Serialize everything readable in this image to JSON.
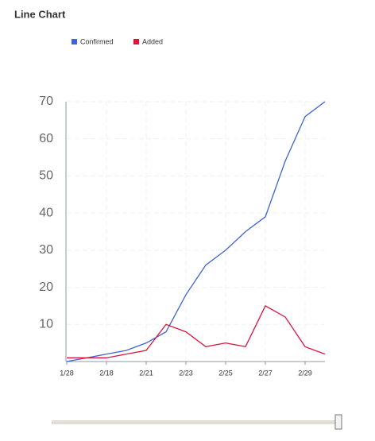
{
  "chart_data": {
    "type": "line",
    "title": "Line Chart",
    "categories": [
      "1/28",
      null,
      "2/18",
      null,
      "2/21",
      null,
      "2/23",
      null,
      "2/25",
      null,
      "2/27",
      null,
      "2/29",
      null
    ],
    "series": [
      {
        "name": "Confirmed",
        "color": "#3f63d6",
        "values": [
          0,
          1,
          2,
          3,
          5,
          8,
          18,
          26,
          30,
          35,
          39,
          54,
          66,
          70
        ]
      },
      {
        "name": "Added",
        "color": "#dc143c",
        "values": [
          1,
          1,
          1,
          2,
          3,
          10,
          8,
          4,
          5,
          4,
          15,
          12,
          4,
          2
        ]
      }
    ],
    "ylim": [
      0,
      70
    ],
    "yticks": [
      10,
      20,
      30,
      40,
      50,
      60,
      70
    ],
    "grid": true
  }
}
